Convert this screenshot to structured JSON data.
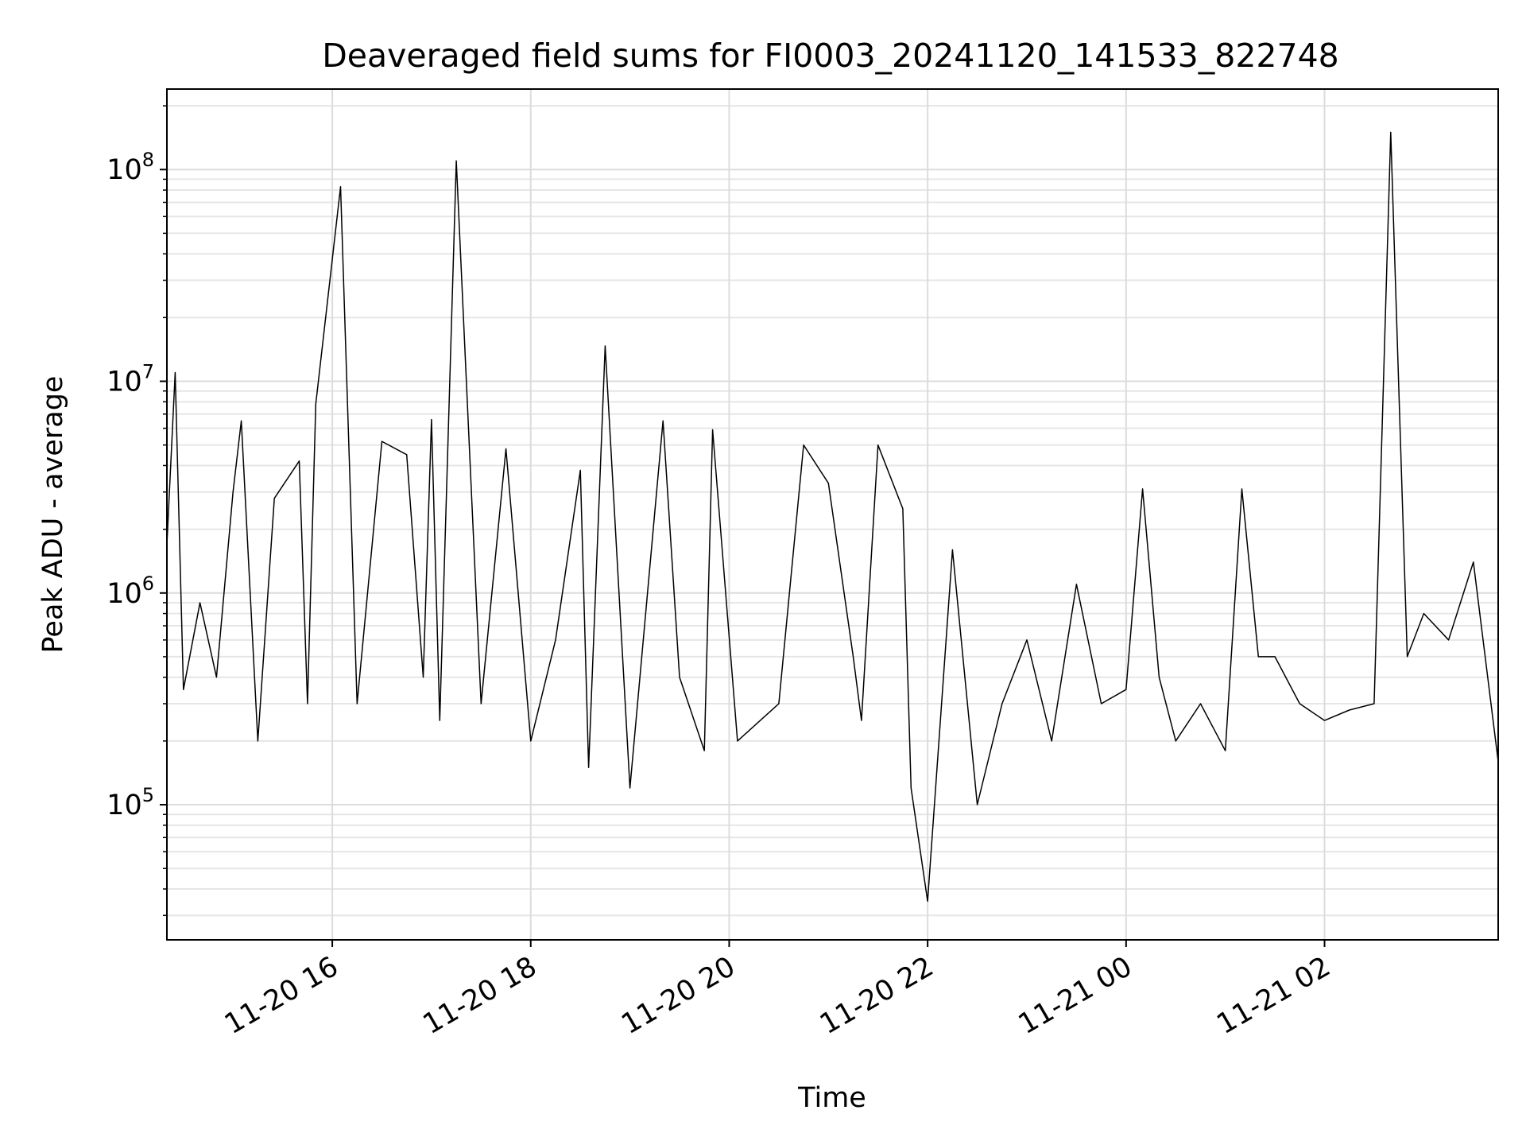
{
  "chart_data": {
    "type": "line",
    "title": "Deaveraged field sums for FI0003_20241120_141533_822748",
    "xlabel": "Time",
    "ylabel": "Peak ADU - average",
    "yscale": "log",
    "ylim": [
      23000,
      240000000
    ],
    "xlim": [
      "2024-11-20T14:20",
      "2024-11-21T03:45"
    ],
    "grid": true,
    "line_color": "#000000",
    "x_ticks": [
      {
        "value": "2024-11-20T16:00",
        "label": "11-20 16"
      },
      {
        "value": "2024-11-20T18:00",
        "label": "11-20 18"
      },
      {
        "value": "2024-11-20T20:00",
        "label": "11-20 20"
      },
      {
        "value": "2024-11-20T22:00",
        "label": "11-20 22"
      },
      {
        "value": "2024-11-21T00:00",
        "label": "11-21 00"
      },
      {
        "value": "2024-11-21T02:00",
        "label": "11-21 02"
      }
    ],
    "y_ticks": [
      {
        "value": 100000,
        "base": "10",
        "exp": "5"
      },
      {
        "value": 1000000,
        "base": "10",
        "exp": "6"
      },
      {
        "value": 10000000,
        "base": "10",
        "exp": "7"
      },
      {
        "value": 100000000,
        "base": "10",
        "exp": "8"
      }
    ],
    "series": [
      {
        "x": [
          "2024-11-20T14:20",
          "2024-11-20T14:25",
          "2024-11-20T14:30",
          "2024-11-20T14:40",
          "2024-11-20T14:50",
          "2024-11-20T15:00",
          "2024-11-20T15:05",
          "2024-11-20T15:15",
          "2024-11-20T15:25",
          "2024-11-20T15:40",
          "2024-11-20T15:45",
          "2024-11-20T15:50",
          "2024-11-20T16:05",
          "2024-11-20T16:15",
          "2024-11-20T16:30",
          "2024-11-20T16:45",
          "2024-11-20T16:55",
          "2024-11-20T17:00",
          "2024-11-20T17:05",
          "2024-11-20T17:15",
          "2024-11-20T17:30",
          "2024-11-20T17:45",
          "2024-11-20T18:00",
          "2024-11-20T18:15",
          "2024-11-20T18:30",
          "2024-11-20T18:35",
          "2024-11-20T18:45",
          "2024-11-20T19:00",
          "2024-11-20T19:15",
          "2024-11-20T19:20",
          "2024-11-20T19:30",
          "2024-11-20T19:45",
          "2024-11-20T19:50",
          "2024-11-20T20:05",
          "2024-11-20T20:30",
          "2024-11-20T20:45",
          "2024-11-20T21:00",
          "2024-11-20T21:15",
          "2024-11-20T21:20",
          "2024-11-20T21:30",
          "2024-11-20T21:45",
          "2024-11-20T21:50",
          "2024-11-20T22:00",
          "2024-11-20T22:15",
          "2024-11-20T22:30",
          "2024-11-20T22:45",
          "2024-11-20T23:00",
          "2024-11-20T23:15",
          "2024-11-20T23:30",
          "2024-11-20T23:45",
          "2024-11-21T00:00",
          "2024-11-21T00:10",
          "2024-11-21T00:20",
          "2024-11-21T00:30",
          "2024-11-21T00:45",
          "2024-11-21T01:00",
          "2024-11-21T01:10",
          "2024-11-21T01:20",
          "2024-11-21T01:30",
          "2024-11-21T01:45",
          "2024-11-21T02:00",
          "2024-11-21T02:15",
          "2024-11-21T02:30",
          "2024-11-21T02:40",
          "2024-11-21T02:50",
          "2024-11-21T03:00",
          "2024-11-21T03:15",
          "2024-11-21T03:30",
          "2024-11-21T03:45"
        ],
        "y": [
          1700000,
          11000000,
          350000,
          900000,
          400000,
          3000000,
          6500000,
          200000,
          2800000,
          4200000,
          300000,
          7800000,
          83000000,
          300000,
          5200000,
          4500000,
          400000,
          6600000,
          250000,
          110000000,
          300000,
          4800000,
          200000,
          600000,
          3800000,
          150000,
          14700000,
          120000,
          2400000,
          6500000,
          400000,
          180000,
          5900000,
          200000,
          300000,
          5000000,
          3300000,
          500000,
          250000,
          5000000,
          2500000,
          120000,
          35000,
          1600000,
          100000,
          300000,
          600000,
          200000,
          1100000,
          300000,
          350000,
          3100000,
          400000,
          200000,
          300000,
          180000,
          3100000,
          500000,
          500000,
          300000,
          250000,
          280000,
          300000,
          150000000,
          500000,
          800000,
          600000,
          1400000,
          160000
        ]
      }
    ]
  }
}
